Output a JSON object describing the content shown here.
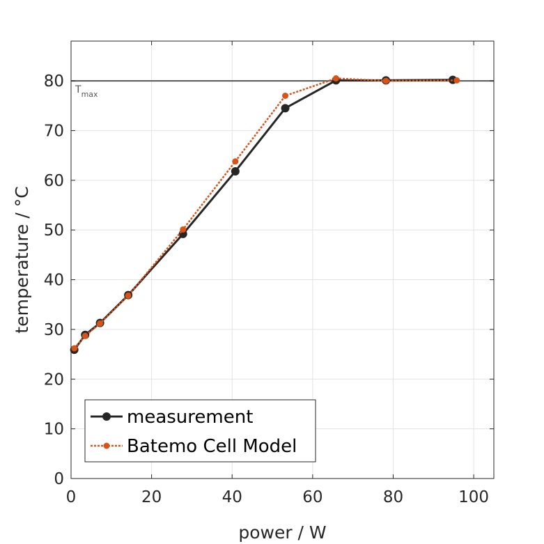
{
  "chart_data": {
    "type": "line",
    "xlabel": "power / W",
    "ylabel": "temperature / °C",
    "xlim": [
      0,
      105
    ],
    "ylim": [
      0,
      88
    ],
    "xticks": [
      0,
      20,
      40,
      60,
      80,
      100
    ],
    "yticks": [
      0,
      10,
      20,
      30,
      40,
      50,
      60,
      70,
      80
    ],
    "grid": true,
    "legend_position": "bottom-left",
    "reference_line": {
      "y": 80,
      "label_main": "T",
      "label_sub": "max",
      "color": "#555555"
    },
    "series": [
      {
        "name": "measurement",
        "color": "#262626",
        "style": "solid",
        "x": [
          0.8,
          3.5,
          7.2,
          14.2,
          27.8,
          40.8,
          53.2,
          65.8,
          78.2,
          94.8
        ],
        "y": [
          25.9,
          28.9,
          31.3,
          36.9,
          49.2,
          61.8,
          74.5,
          80.1,
          80.1,
          80.2
        ]
      },
      {
        "name": "Batemo Cell Model",
        "color": "#D95319",
        "style": "dotted",
        "x": [
          0.8,
          3.5,
          7.2,
          14.2,
          27.8,
          40.8,
          53.2,
          65.8,
          78.2,
          95.8
        ],
        "y": [
          26.2,
          28.7,
          31.2,
          36.8,
          50.1,
          63.8,
          77.0,
          80.5,
          80.0,
          80.1
        ]
      }
    ]
  }
}
